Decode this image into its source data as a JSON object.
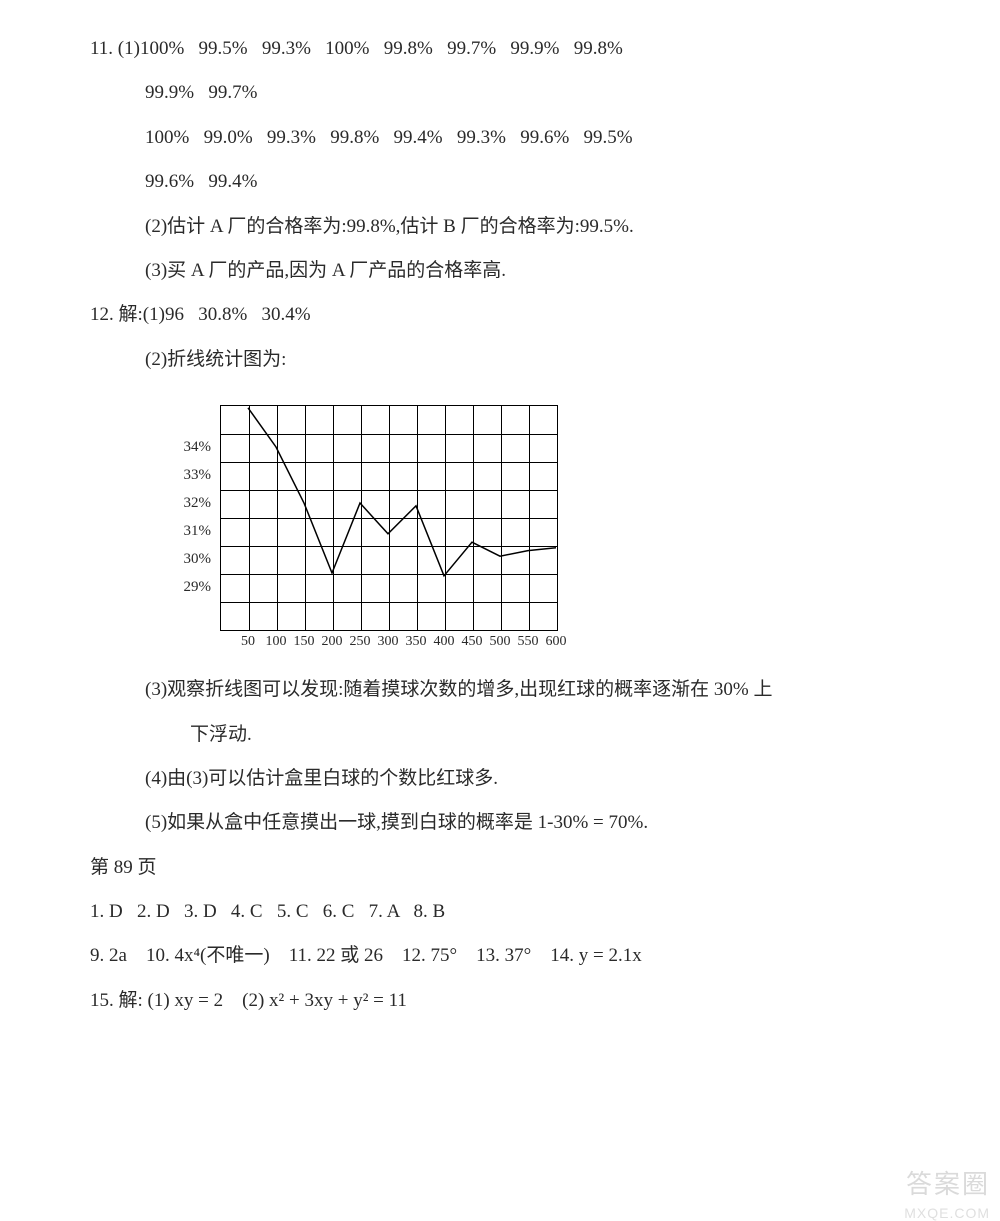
{
  "q11": {
    "label": "11. (1)",
    "row1": [
      "100%",
      "99.5%",
      "99.3%",
      "100%",
      "99.8%",
      "99.7%",
      "99.9%",
      "99.8%"
    ],
    "row2": [
      "99.9%",
      "99.7%"
    ],
    "row3": [
      "100%",
      "99.0%",
      "99.3%",
      "99.8%",
      "99.4%",
      "99.3%",
      "99.6%",
      "99.5%"
    ],
    "row4": [
      "99.6%",
      "99.4%"
    ],
    "p2": "(2)估计 A 厂的合格率为:99.8%,估计 B 厂的合格率为:99.5%.",
    "p3": "(3)买 A 厂的产品,因为 A 厂产品的合格率高."
  },
  "q12": {
    "label": "12. 解:(1)",
    "p1_vals": [
      "96",
      "30.8%",
      "30.4%"
    ],
    "p2": "(2)折线统计图为:",
    "chart": {
      "type": "line",
      "grid_cols": 12,
      "grid_rows": 8,
      "y_ticks": [
        {
          "label": "34%",
          "v": 34
        },
        {
          "label": "33%",
          "v": 33
        },
        {
          "label": "32%",
          "v": 32
        },
        {
          "label": "31%",
          "v": 31
        },
        {
          "label": "30%",
          "v": 30
        },
        {
          "label": "29%",
          "v": 29
        }
      ],
      "y_min": 27.5,
      "y_max": 35.5,
      "x_ticks": [
        50,
        100,
        150,
        200,
        250,
        300,
        350,
        400,
        450,
        500,
        550,
        600
      ],
      "x_min": 0,
      "x_max": 600,
      "points": [
        {
          "x": 50,
          "y": 35.4
        },
        {
          "x": 100,
          "y": 34.0
        },
        {
          "x": 150,
          "y": 32.0
        },
        {
          "x": 200,
          "y": 29.5
        },
        {
          "x": 250,
          "y": 32.0
        },
        {
          "x": 300,
          "y": 30.9
        },
        {
          "x": 350,
          "y": 31.9
        },
        {
          "x": 400,
          "y": 29.4
        },
        {
          "x": 450,
          "y": 30.6
        },
        {
          "x": 500,
          "y": 30.1
        },
        {
          "x": 550,
          "y": 30.3
        },
        {
          "x": 600,
          "y": 30.4
        }
      ],
      "line_width": 1.5,
      "line_color": "#000000",
      "grid_color": "#000000",
      "background_color": "#ffffff",
      "label_fontsize": 14
    },
    "p3": "(3)观察折线图可以发现:随着摸球次数的增多,出现红球的概率逐渐在 30% 上",
    "p3b": "下浮动.",
    "p4": "(4)由(3)可以估计盒里白球的个数比红球多.",
    "p5": "(5)如果从盒中任意摸出一球,摸到白球的概率是 1-30% = 70%."
  },
  "page89": {
    "header": "第 89 页",
    "line1": [
      "1. D",
      "2. D",
      "3. D",
      "4. C",
      "5. C",
      "6. C",
      "7. A",
      "8. B"
    ],
    "line2_items": {
      "a": "9. 2a",
      "b": "10. 4x⁴(不唯一)",
      "c": "11. 22 或 26",
      "d": "12. 75°",
      "e": "13. 37°",
      "f": "14. y = 2.1x"
    },
    "line3_items": {
      "label": "15. 解:",
      "a": "(1) xy = 2",
      "b": "(2) x² + 3xy + y² = 11"
    }
  },
  "watermark": {
    "top": "答案圈",
    "bottom": "MXQE.COM"
  }
}
